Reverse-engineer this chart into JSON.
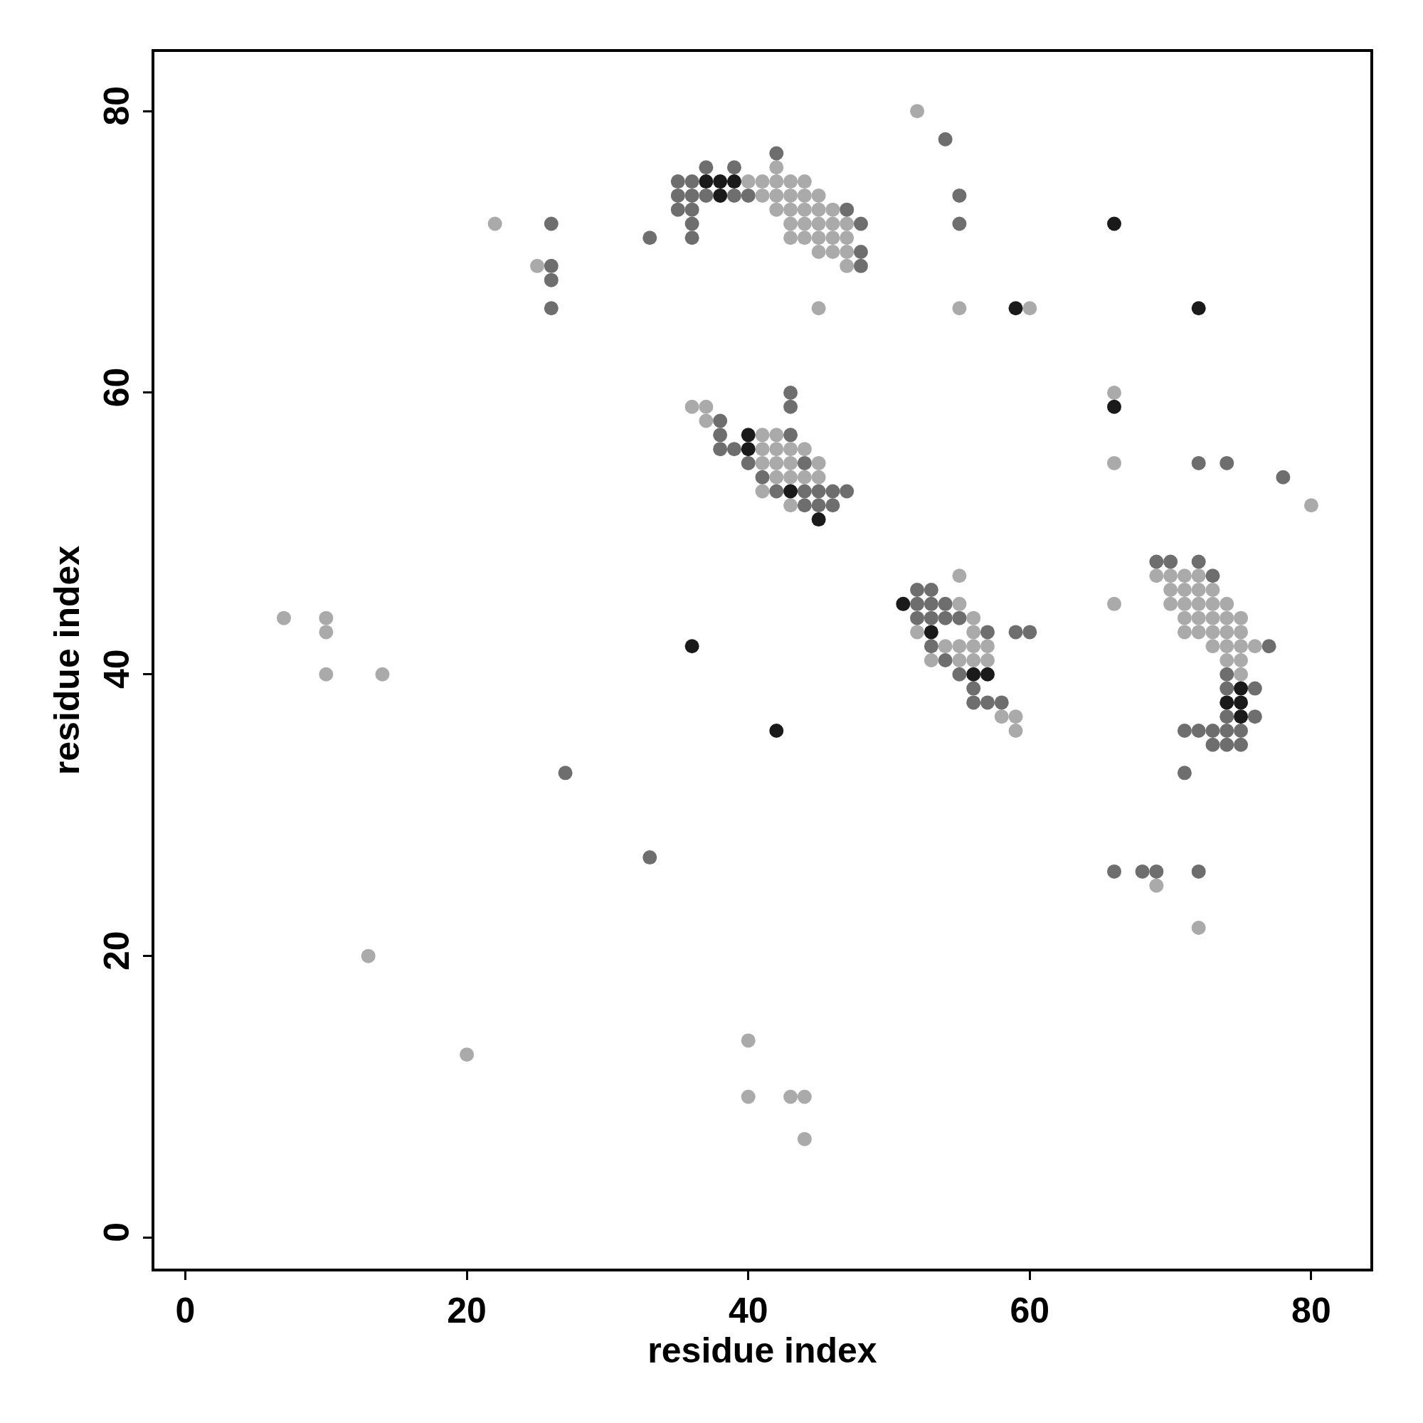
{
  "chart_data": {
    "type": "scatter",
    "xlabel": "residue index",
    "ylabel": "residue index",
    "xlim": [
      -2.2,
      84.2
    ],
    "ylim": [
      -2.2,
      84.2
    ],
    "xticks": [
      0,
      20,
      40,
      60,
      80
    ],
    "yticks": [
      0,
      20,
      40,
      60,
      80
    ],
    "marker": "circle",
    "series": [
      {
        "color": "#aaaaaa",
        "x": [
          42,
          40,
          41,
          42,
          43,
          44,
          41,
          42,
          43,
          44,
          45,
          42,
          43,
          44,
          45,
          46,
          43,
          44,
          45,
          46,
          47,
          43,
          44,
          45,
          46,
          47,
          45,
          46,
          47,
          47,
          45,
          52,
          22,
          25,
          55,
          60,
          66,
          66,
          80,
          36,
          37,
          37,
          41,
          42,
          41,
          42,
          43,
          44,
          41,
          42,
          43,
          45,
          42,
          43,
          44,
          45,
          41,
          43,
          55,
          55,
          56,
          52,
          56,
          54,
          55,
          56,
          57,
          53,
          55,
          56,
          57,
          58,
          59,
          59,
          69,
          70,
          71,
          72,
          70,
          71,
          72,
          73,
          70,
          71,
          72,
          73,
          74,
          71,
          72,
          73,
          74,
          75,
          71,
          72,
          73,
          74,
          75,
          73,
          74,
          75,
          76,
          74,
          75,
          75,
          66,
          69,
          72,
          7,
          10,
          10,
          10,
          14,
          13,
          20,
          40,
          40,
          43,
          44,
          44
        ],
        "values": [
          76,
          75,
          75,
          75,
          75,
          75,
          74,
          74,
          74,
          74,
          74,
          73,
          73,
          73,
          73,
          73,
          72,
          72,
          72,
          72,
          72,
          71,
          71,
          71,
          71,
          71,
          70,
          70,
          70,
          69,
          66,
          80,
          72,
          69,
          66,
          66,
          60,
          55,
          52,
          59,
          59,
          58,
          57,
          57,
          56,
          56,
          56,
          56,
          55,
          55,
          55,
          55,
          54,
          54,
          54,
          54,
          53,
          52,
          47,
          45,
          44,
          43,
          43,
          42,
          42,
          42,
          42,
          41,
          41,
          41,
          41,
          37,
          37,
          36,
          47,
          47,
          47,
          47,
          46,
          46,
          46,
          46,
          45,
          45,
          45,
          45,
          45,
          44,
          44,
          44,
          44,
          44,
          43,
          43,
          43,
          43,
          43,
          42,
          42,
          42,
          42,
          41,
          41,
          40,
          45,
          25,
          22,
          44,
          44,
          43,
          40,
          40,
          20,
          13,
          14,
          10,
          10,
          10,
          7
        ]
      },
      {
        "color": "#6e6e6e",
        "x": [
          42,
          37,
          39,
          35,
          36,
          35,
          36,
          37,
          39,
          40,
          35,
          36,
          47,
          36,
          48,
          33,
          36,
          48,
          48,
          54,
          55,
          55,
          26,
          26,
          26,
          26,
          72,
          74,
          78,
          43,
          43,
          38,
          38,
          43,
          38,
          39,
          40,
          44,
          41,
          42,
          44,
          45,
          46,
          47,
          44,
          45,
          46,
          52,
          53,
          52,
          53,
          54,
          52,
          53,
          54,
          55,
          57,
          59,
          60,
          53,
          54,
          55,
          56,
          56,
          57,
          58,
          69,
          70,
          72,
          73,
          77,
          74,
          74,
          76,
          74,
          76,
          71,
          72,
          73,
          74,
          75,
          73,
          74,
          75,
          71,
          66,
          68,
          69,
          72,
          27,
          33
        ],
        "values": [
          77,
          76,
          76,
          75,
          75,
          74,
          74,
          74,
          74,
          74,
          73,
          73,
          73,
          72,
          72,
          71,
          71,
          70,
          69,
          78,
          74,
          72,
          72,
          69,
          68,
          66,
          55,
          55,
          54,
          60,
          59,
          58,
          57,
          57,
          56,
          56,
          55,
          55,
          54,
          53,
          53,
          53,
          53,
          53,
          52,
          52,
          52,
          46,
          46,
          45,
          45,
          45,
          44,
          44,
          44,
          44,
          43,
          43,
          43,
          42,
          41,
          40,
          39,
          38,
          38,
          38,
          48,
          48,
          48,
          47,
          42,
          40,
          39,
          39,
          37,
          37,
          36,
          36,
          36,
          36,
          36,
          35,
          35,
          35,
          33,
          26,
          26,
          26,
          26,
          33,
          27
        ]
      },
      {
        "color": "#1a1a1a",
        "x": [
          37,
          38,
          39,
          38,
          59,
          66,
          72,
          66,
          40,
          40,
          43,
          45,
          51,
          53,
          56,
          57,
          75,
          74,
          75,
          75,
          36,
          42
        ],
        "values": [
          75,
          75,
          75,
          74,
          66,
          72,
          66,
          59,
          57,
          56,
          53,
          51,
          45,
          43,
          40,
          40,
          39,
          38,
          38,
          37,
          42,
          36
        ]
      }
    ]
  }
}
